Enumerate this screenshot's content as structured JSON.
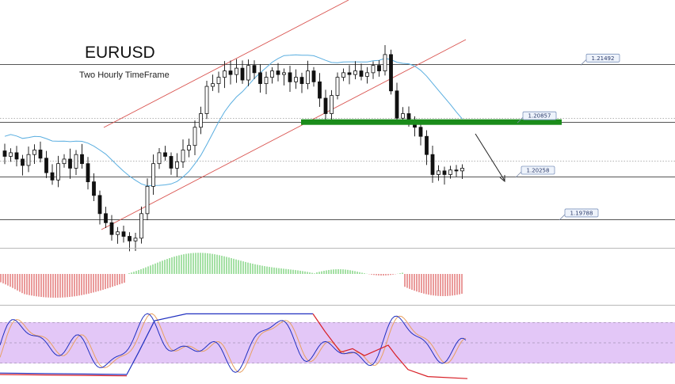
{
  "chart_data": {
    "type": "candlestick",
    "title": "EURUSD",
    "subtitle": "Two Hourly TimeFrame",
    "price_range": [
      1.195,
      1.222
    ],
    "levels": [
      {
        "label": "1.21492",
        "value": 1.21492
      },
      {
        "label": "1.20857",
        "value": 1.20857
      },
      {
        "label": "1.20258",
        "value": 1.20258
      },
      {
        "label": "1.19788",
        "value": 1.19788
      }
    ],
    "support_zone": {
      "value": 1.20857,
      "color": "#1a8c1a"
    },
    "closes": [
      1.2048,
      1.2052,
      1.2045,
      1.2038,
      1.205,
      1.2055,
      1.2046,
      1.203,
      1.2022,
      1.204,
      1.2045,
      1.2035,
      1.205,
      1.204,
      1.202,
      1.2005,
      1.1985,
      1.1975,
      1.1962,
      1.1965,
      1.196,
      1.1955,
      1.1958,
      1.1985,
      1.2015,
      1.204,
      1.2052,
      1.2048,
      1.2035,
      1.2042,
      1.2055,
      1.206,
      1.208,
      1.2095,
      1.2125,
      1.2128,
      1.2135,
      1.2142,
      1.2138,
      1.2145,
      1.2132,
      1.2148,
      1.214,
      1.2128,
      1.2135,
      1.2142,
      1.2138,
      1.214,
      1.213,
      1.2135,
      1.2128,
      1.2142,
      1.213,
      1.2112,
      1.2095,
      1.2115,
      1.2135,
      1.214,
      1.2138,
      1.2142,
      1.2136,
      1.214,
      1.2148,
      1.2142,
      1.216,
      1.212,
      1.209,
      1.2095,
      1.2088,
      1.208,
      1.207,
      1.205,
      1.2028,
      1.2032,
      1.2028,
      1.2033,
      1.2032,
      1.2035
    ],
    "moving_average": {
      "color": "#5aaee0"
    },
    "channel": {
      "color": "#d9534f"
    },
    "projection_arrow": {
      "color": "#222222"
    },
    "oscillator_histogram": {
      "positive_color": "#7ed37e",
      "negative_color": "#e07070"
    },
    "stochastic": {
      "fast_color": "#2030c0",
      "slow_color": "#e8a060",
      "signal_color": "#d81f26",
      "band_color": "#e3c7f7",
      "range": [
        0,
        100
      ]
    }
  }
}
